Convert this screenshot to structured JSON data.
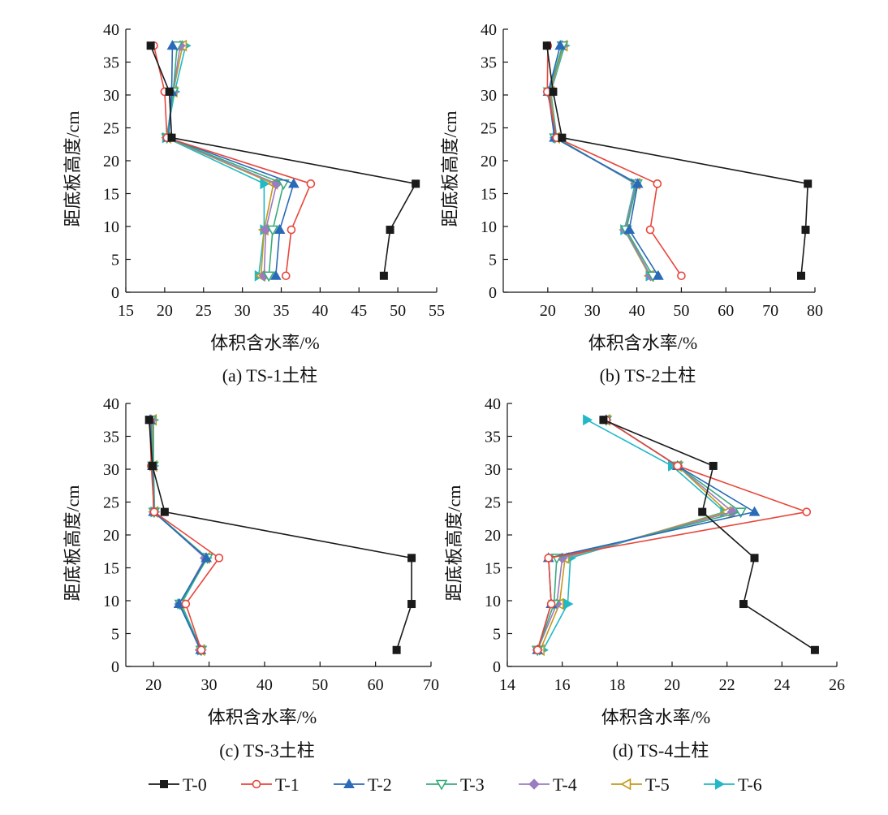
{
  "series_styles": [
    {
      "name": "T-0",
      "color": "#1a1a1a",
      "marker": "square-filled"
    },
    {
      "name": "T-1",
      "color": "#e8463c",
      "marker": "circle-open"
    },
    {
      "name": "T-2",
      "color": "#2a6ab8",
      "marker": "triangle-up-filled"
    },
    {
      "name": "T-3",
      "color": "#3aab7a",
      "marker": "triangle-down-open"
    },
    {
      "name": "T-4",
      "color": "#9b7cc0",
      "marker": "diamond-filled"
    },
    {
      "name": "T-5",
      "color": "#c49a1a",
      "marker": "triangle-left-open"
    },
    {
      "name": "T-6",
      "color": "#22b8c6",
      "marker": "triangle-right-filled"
    }
  ],
  "legend": {
    "placement": "bottom-center",
    "entries": [
      "T-0",
      "T-1",
      "T-2",
      "T-3",
      "T-4",
      "T-5",
      "T-6"
    ]
  },
  "chart_data": [
    {
      "type": "line",
      "caption": "(a) TS-1土柱",
      "xlabel": "体积含水率/%",
      "ylabel": "距底板高度/cm",
      "xlim": [
        15,
        55
      ],
      "ylim": [
        0,
        40
      ],
      "xticks": [
        15,
        20,
        25,
        30,
        35,
        40,
        45,
        50,
        55
      ],
      "yticks": [
        0,
        5,
        10,
        15,
        20,
        25,
        30,
        35,
        40
      ],
      "y": [
        37.5,
        30.5,
        23.5,
        16.5,
        9.5,
        2.5
      ],
      "series": [
        {
          "name": "T-0",
          "x": [
            18.2,
            20.6,
            20.9,
            52.3,
            49.0,
            48.2
          ]
        },
        {
          "name": "T-1",
          "x": [
            18.6,
            20.0,
            20.3,
            38.8,
            36.3,
            35.6
          ]
        },
        {
          "name": "T-2",
          "x": [
            21.0,
            20.9,
            20.5,
            36.6,
            34.8,
            34.3
          ]
        },
        {
          "name": "T-3",
          "x": [
            21.6,
            21.1,
            20.3,
            35.3,
            33.9,
            33.4
          ]
        },
        {
          "name": "T-4",
          "x": [
            22.0,
            21.1,
            20.3,
            34.4,
            33.0,
            32.8
          ]
        },
        {
          "name": "T-5",
          "x": [
            22.3,
            21.1,
            20.3,
            34.0,
            32.8,
            32.4
          ]
        },
        {
          "name": "T-6",
          "x": [
            22.7,
            21.3,
            20.2,
            32.8,
            32.8,
            32.1
          ]
        }
      ]
    },
    {
      "type": "line",
      "caption": "(b) TS-2土柱",
      "xlabel": "体积含水率/%",
      "ylabel": "距底板高度/cm",
      "xlim": [
        10,
        80
      ],
      "ylim": [
        0,
        40
      ],
      "xticks": [
        20,
        30,
        40,
        50,
        60,
        70,
        80
      ],
      "yticks": [
        0,
        5,
        10,
        15,
        20,
        25,
        30,
        35,
        40
      ],
      "y": [
        37.5,
        30.5,
        23.5,
        16.5,
        9.5,
        2.5
      ],
      "series": [
        {
          "name": "T-0",
          "x": [
            19.8,
            21.2,
            23.2,
            78.4,
            77.9,
            76.9
          ]
        },
        {
          "name": "T-1",
          "x": [
            20.0,
            19.9,
            22.0,
            44.6,
            43.0,
            50.0
          ]
        },
        {
          "name": "T-2",
          "x": [
            22.8,
            20.1,
            21.5,
            40.2,
            38.3,
            44.8
          ]
        },
        {
          "name": "T-3",
          "x": [
            23.3,
            20.2,
            21.6,
            40.0,
            37.6,
            43.6
          ]
        },
        {
          "name": "T-4",
          "x": [
            23.3,
            20.4,
            21.6,
            39.8,
            37.4,
            43.1
          ]
        },
        {
          "name": "T-5",
          "x": [
            23.5,
            20.6,
            21.8,
            39.8,
            37.3,
            42.9
          ]
        },
        {
          "name": "T-6",
          "x": [
            23.8,
            20.7,
            22.0,
            39.6,
            37.2,
            42.9
          ]
        }
      ]
    },
    {
      "type": "line",
      "caption": "(c) TS-3土柱",
      "xlabel": "体积含水率/%",
      "ylabel": "距底板高度/cm",
      "xlim": [
        15,
        70
      ],
      "ylim": [
        0,
        40
      ],
      "xticks": [
        20,
        30,
        40,
        50,
        60,
        70
      ],
      "yticks": [
        0,
        5,
        10,
        15,
        20,
        25,
        30,
        35,
        40
      ],
      "y": [
        37.5,
        30.5,
        23.5,
        16.5,
        9.5,
        2.5
      ],
      "series": [
        {
          "name": "T-0",
          "x": [
            19.2,
            19.8,
            22.0,
            66.5,
            66.5,
            63.8
          ]
        },
        {
          "name": "T-1",
          "x": [
            19.3,
            19.6,
            20.1,
            31.8,
            25.8,
            28.6
          ]
        },
        {
          "name": "T-2",
          "x": [
            19.4,
            19.8,
            20.0,
            29.5,
            24.6,
            28.5
          ]
        },
        {
          "name": "T-3",
          "x": [
            19.5,
            19.9,
            20.1,
            29.7,
            24.8,
            28.6
          ]
        },
        {
          "name": "T-4",
          "x": [
            19.6,
            19.8,
            20.1,
            29.3,
            24.7,
            28.4
          ]
        },
        {
          "name": "T-5",
          "x": [
            19.8,
            19.9,
            20.1,
            29.4,
            24.8,
            28.5
          ]
        },
        {
          "name": "T-6",
          "x": [
            20.0,
            20.0,
            20.2,
            29.6,
            25.0,
            28.6
          ]
        }
      ]
    },
    {
      "type": "line",
      "caption": "(d) TS-4土柱",
      "xlabel": "体积含水率/%",
      "ylabel": "距底板高度/cm",
      "xlim": [
        14,
        26
      ],
      "ylim": [
        0,
        40
      ],
      "xticks": [
        14,
        16,
        18,
        20,
        22,
        24,
        26
      ],
      "yticks": [
        0,
        5,
        10,
        15,
        20,
        25,
        30,
        35,
        40
      ],
      "y": [
        37.5,
        30.5,
        23.5,
        16.5,
        9.5,
        2.5
      ],
      "series": [
        {
          "name": "T-0",
          "x": [
            17.5,
            21.5,
            21.1,
            23.0,
            22.6,
            25.2
          ]
        },
        {
          "name": "T-1",
          "x": [
            17.6,
            20.2,
            24.9,
            15.5,
            15.6,
            15.1
          ]
        },
        {
          "name": "T-2",
          "x": [
            17.6,
            20.2,
            23.0,
            15.5,
            15.6,
            15.1
          ]
        },
        {
          "name": "T-3",
          "x": [
            17.6,
            20.2,
            22.5,
            15.8,
            15.7,
            15.1
          ]
        },
        {
          "name": "T-4",
          "x": [
            17.6,
            20.2,
            22.2,
            16.0,
            15.8,
            15.1
          ]
        },
        {
          "name": "T-5",
          "x": [
            17.6,
            20.2,
            22.0,
            16.1,
            15.9,
            15.2
          ]
        },
        {
          "name": "T-6",
          "x": [
            16.9,
            20.0,
            21.9,
            16.3,
            16.2,
            15.3
          ]
        }
      ]
    }
  ]
}
